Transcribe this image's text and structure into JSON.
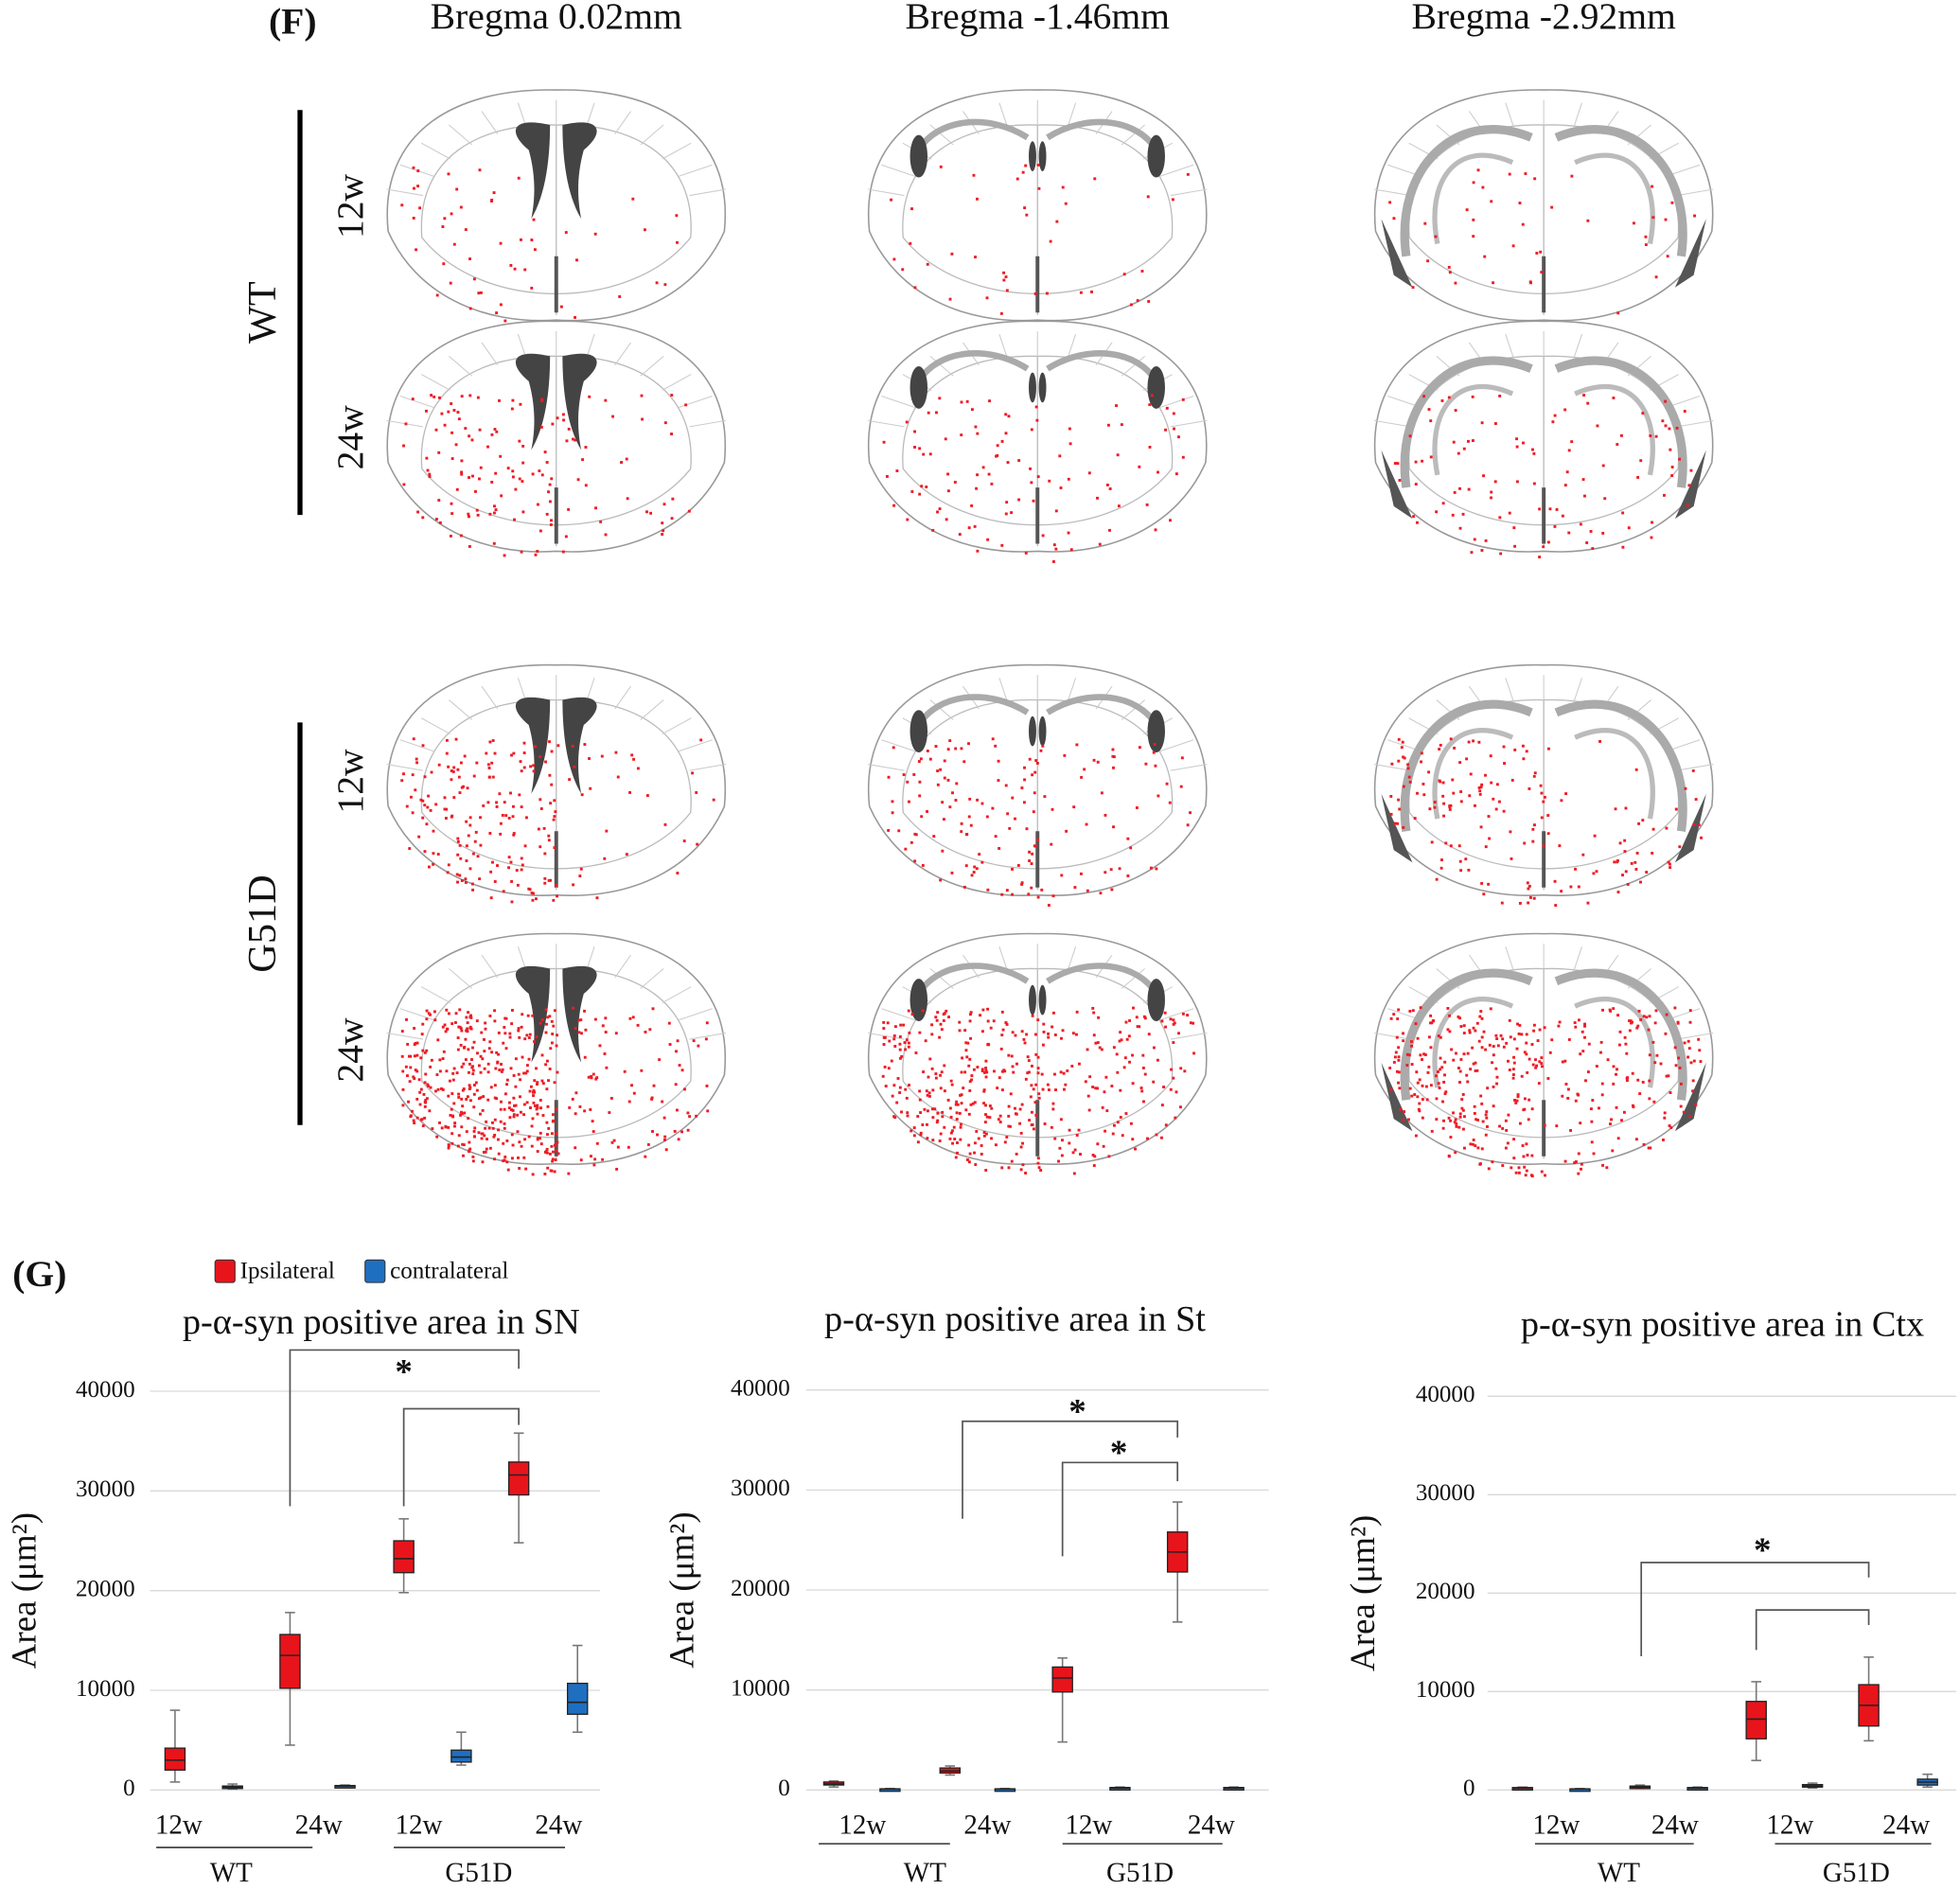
{
  "panel_f": {
    "label": "(F)",
    "columns": [
      "Bregma 0.02mm",
      "Bregma -1.46mm",
      "Bregma -2.92mm"
    ],
    "groups": [
      {
        "name": "WT",
        "rows": [
          "12w",
          "24w"
        ]
      },
      {
        "name": "G51D",
        "rows": [
          "12w",
          "24w"
        ]
      }
    ]
  },
  "panel_g": {
    "label": "(G)",
    "legend": [
      {
        "name": "Ipsilateral",
        "color": "#e8141b"
      },
      {
        "name": "contralateral",
        "color": "#1f6fc0"
      }
    ]
  },
  "chart_data": [
    {
      "type": "box",
      "title": "p-α-syn positive area in SN",
      "y_label": "Area (μm²)",
      "categories": [
        "12w",
        "24w",
        "12w",
        "24w"
      ],
      "groups": [
        "WT",
        "G51D"
      ],
      "ylim": [
        0,
        40000
      ],
      "yticks": [
        0,
        10000,
        20000,
        30000,
        40000
      ],
      "grid": true,
      "series": [
        {
          "color": "#e8141b",
          "values": [
            {
              "min": 800,
              "q1": 2000,
              "median": 3000,
              "q3": 4200,
              "max": 8000
            },
            {
              "min": 4500,
              "q1": 10200,
              "median": 13500,
              "q3": 15600,
              "max": 17800
            },
            {
              "min": 19800,
              "q1": 21800,
              "median": 23200,
              "q3": 25000,
              "max": 27200
            },
            {
              "min": 24800,
              "q1": 29600,
              "median": 31600,
              "q3": 32900,
              "max": 35800
            }
          ]
        },
        {
          "color": "#1f6fc0",
          "values": [
            {
              "min": 100,
              "q1": 200,
              "median": 300,
              "q3": 400,
              "max": 600
            },
            {
              "min": 300,
              "q1": 350,
              "median": 400,
              "q3": 450,
              "max": 500
            },
            {
              "min": 2500,
              "q1": 2800,
              "median": 3300,
              "q3": 4000,
              "max": 5800
            },
            {
              "min": 5800,
              "q1": 7600,
              "median": 8800,
              "q3": 10700,
              "max": 14500
            }
          ]
        }
      ],
      "annotations": [
        "*"
      ]
    },
    {
      "type": "box",
      "title": "p-α-syn positive area in St",
      "y_label": "Area (μm²)",
      "categories": [
        "12w",
        "24w",
        "12w",
        "24w"
      ],
      "groups": [
        "WT",
        "G51D"
      ],
      "ylim": [
        0,
        40000
      ],
      "yticks": [
        0,
        10000,
        20000,
        30000,
        40000
      ],
      "grid": true,
      "series": [
        {
          "color": "#e8141b",
          "values": [
            {
              "min": 300,
              "q1": 500,
              "median": 600,
              "q3": 800,
              "max": 900
            },
            {
              "min": 1500,
              "q1": 1700,
              "median": 1900,
              "q3": 2200,
              "max": 2400
            },
            {
              "min": 4800,
              "q1": 9800,
              "median": 11200,
              "q3": 12300,
              "max": 13200
            },
            {
              "min": 16800,
              "q1": 21800,
              "median": 23800,
              "q3": 25800,
              "max": 28800
            }
          ]
        },
        {
          "color": "#1f6fc0",
          "values": [
            {
              "min": 50,
              "q1": 80,
              "median": 100,
              "q3": 120,
              "max": 150
            },
            {
              "min": 50,
              "q1": 80,
              "median": 100,
              "q3": 120,
              "max": 150
            },
            {
              "min": 100,
              "q1": 150,
              "median": 200,
              "q3": 250,
              "max": 300
            },
            {
              "min": 100,
              "q1": 150,
              "median": 200,
              "q3": 250,
              "max": 300
            }
          ]
        }
      ],
      "annotations": [
        "*",
        "*"
      ]
    },
    {
      "type": "box",
      "title": "p-α-syn positive area in Ctx",
      "y_label": "Area (μm²)",
      "categories": [
        "12w",
        "24w",
        "12w",
        "24w"
      ],
      "groups": [
        "WT",
        "G51D"
      ],
      "ylim": [
        0,
        40000
      ],
      "yticks": [
        0,
        10000,
        20000,
        30000,
        40000
      ],
      "grid": true,
      "series": [
        {
          "color": "#e8141b",
          "values": [
            {
              "min": 100,
              "q1": 150,
              "median": 200,
              "q3": 250,
              "max": 300
            },
            {
              "min": 150,
              "q1": 250,
              "median": 300,
              "q3": 400,
              "max": 500
            },
            {
              "min": 3000,
              "q1": 5200,
              "median": 7200,
              "q3": 9000,
              "max": 11000
            },
            {
              "min": 5000,
              "q1": 6500,
              "median": 8600,
              "q3": 10700,
              "max": 13500
            }
          ]
        },
        {
          "color": "#1f6fc0",
          "values": [
            {
              "min": 50,
              "q1": 80,
              "median": 100,
              "q3": 120,
              "max": 150
            },
            {
              "min": 100,
              "q1": 150,
              "median": 200,
              "q3": 250,
              "max": 300
            },
            {
              "min": 200,
              "q1": 300,
              "median": 400,
              "q3": 550,
              "max": 700
            },
            {
              "min": 300,
              "q1": 500,
              "median": 800,
              "q3": 1100,
              "max": 1600
            }
          ]
        }
      ],
      "annotations": [
        "*"
      ]
    }
  ]
}
